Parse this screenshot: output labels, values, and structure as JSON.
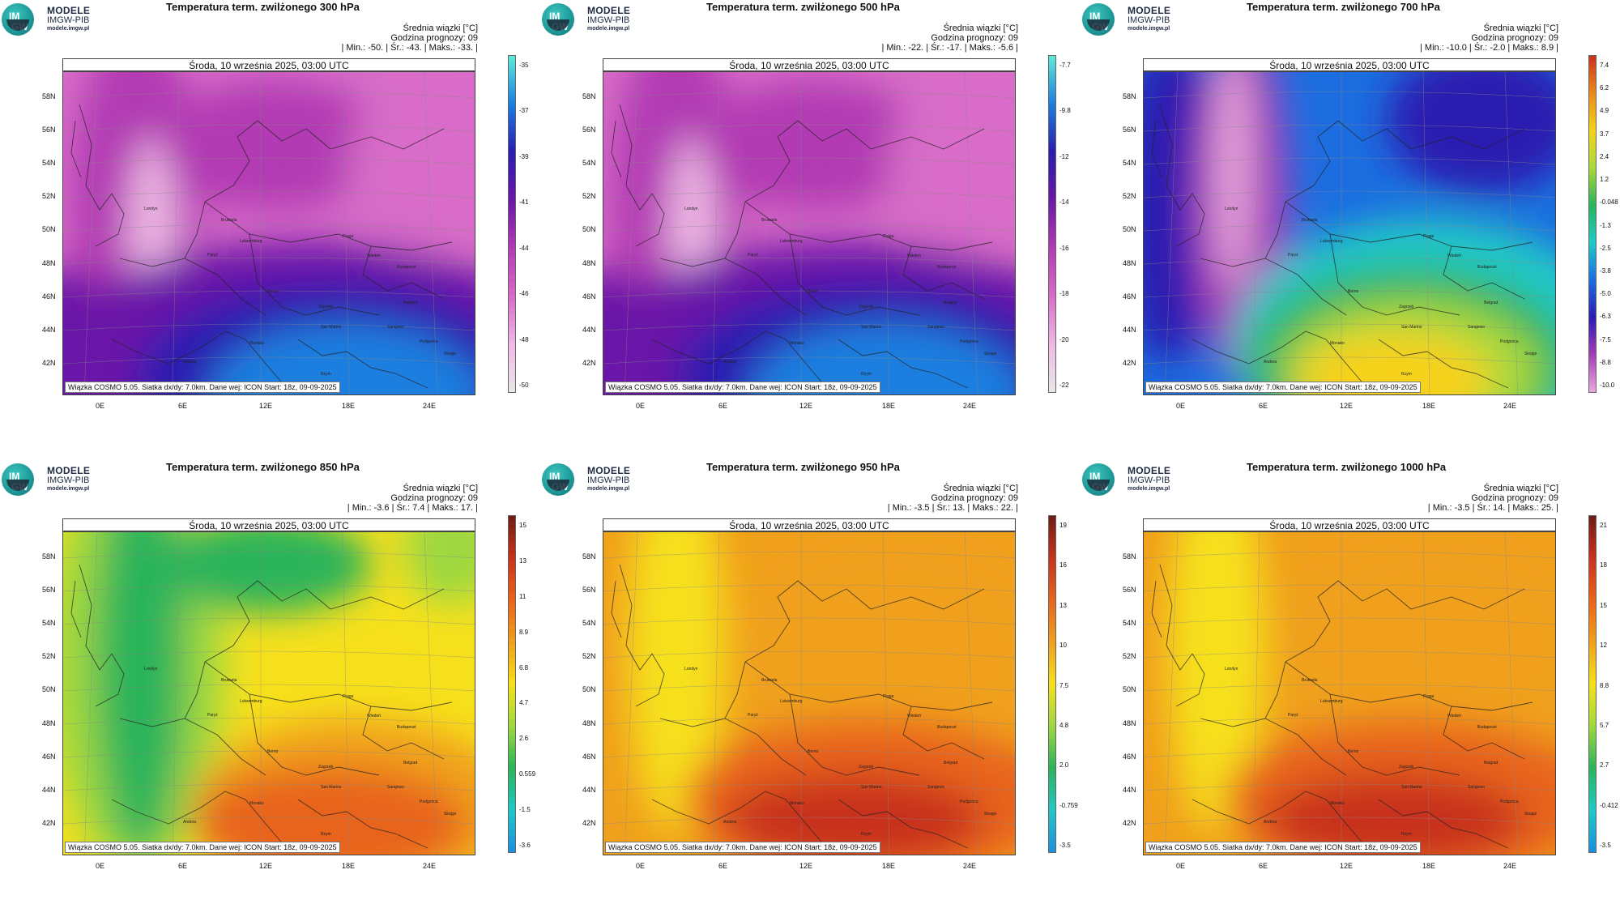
{
  "logo": {
    "line1": "MODELE",
    "line2": "IMGW-PIB",
    "line3": "modele.imgw.pl",
    "badge_top": "IM",
    "badge_bottom": "GW"
  },
  "common": {
    "legend_title": "Średnia wiązki [°C]",
    "forecast_hour": "Godzina prognozy: 09",
    "date": "Środa, 10 września 2025, 03:00 UTC",
    "footer": "Wiązka COSMO 5.05. Siatka dx/dy: 7.0km. Dane wej: ICON Start: 18z, 09-09-2025",
    "lat_labels": [
      "58N",
      "56N",
      "54N",
      "52N",
      "50N",
      "48N",
      "46N",
      "44N",
      "42N"
    ],
    "lon_labels": [
      "0E",
      "6E",
      "12E",
      "18E",
      "24E"
    ],
    "cities": [
      "Londyn",
      "Bruksela",
      "Paryż",
      "Luksemburg",
      "Praga",
      "Wiedeń",
      "Budapeszt",
      "Berno",
      "Zagrzeb",
      "Belgrad",
      "San Marino",
      "Sarajewo",
      "Podgorica",
      "Monako",
      "Andora",
      "Skopje",
      "Rzym"
    ]
  },
  "panels": [
    {
      "title": "Temperatura term. zwilżonego 300 hPa",
      "stats": "| Min.:   -50. | Śr.:   -43. | Maks.:   -33. |",
      "colorbar": [
        "-35",
        "-37",
        "-39",
        "-41",
        "-44",
        "-46",
        "-48",
        "-50"
      ],
      "scheme": "cold",
      "colors": [
        "#5eead8",
        "#1c7fe0",
        "#2a1cb0",
        "#6a18a8",
        "#b23ab4",
        "#d86cc8",
        "#eeb8e4",
        "#e8e8e8"
      ]
    },
    {
      "title": "Temperatura term. zwilżonego 500 hPa",
      "stats": "| Min.:   -22. | Śr.:   -17. | Maks.:   -5.6 |",
      "colorbar": [
        "-7.7",
        "-9.8",
        "-12",
        "-14",
        "-16",
        "-18",
        "-20",
        "-22"
      ],
      "scheme": "cold",
      "colors": [
        "#5eead8",
        "#1c7fe0",
        "#2a1cb0",
        "#6a18a8",
        "#b23ab4",
        "#d86cc8",
        "#eeb8e4",
        "#e8e8e8"
      ]
    },
    {
      "title": "Temperatura term. zwilżonego 700 hPa",
      "stats": "| Min.:   -10.0 | Śr.:   -2.0 | Maks.:   8.9 |",
      "colorbar": [
        "7.4",
        "6.2",
        "4.9",
        "3.7",
        "2.4",
        "1.2",
        "-0.048",
        "-1.3",
        "-2.5",
        "-3.8",
        "-5.0",
        "-6.3",
        "-7.5",
        "-8.8",
        "-10.0"
      ],
      "scheme": "mid",
      "colors": [
        "#c8321c",
        "#e88a1c",
        "#f6d21c",
        "#a8d83c",
        "#2ab45a",
        "#20c8c8",
        "#1c6ee0",
        "#2a1cb0",
        "#a83cb8",
        "#e8a8dc"
      ]
    },
    {
      "title": "Temperatura term. zwilżonego 850 hPa",
      "stats": "| Min.:   -3.6 | Śr.:   7.4 | Maks.:   17. |",
      "colorbar": [
        "15",
        "13",
        "11",
        "8.9",
        "6.8",
        "4.7",
        "2.6",
        "0.559",
        "-1.5",
        "-3.6"
      ],
      "scheme": "warm",
      "colors": [
        "#6e1c14",
        "#c8321c",
        "#e8641c",
        "#f0a01c",
        "#f6e01c",
        "#9ed840",
        "#2ab45a",
        "#20c8c8",
        "#1c8ee0"
      ]
    },
    {
      "title": "Temperatura term. zwilżonego 950 hPa",
      "stats": "| Min.:   -3.5 | Śr.:   13. | Maks.:   22. |",
      "colorbar": [
        "19",
        "16",
        "13",
        "10",
        "7.5",
        "4.8",
        "2.0",
        "-0.759",
        "-3.5"
      ],
      "scheme": "hot",
      "colors": [
        "#6e1c14",
        "#c8321c",
        "#e8641c",
        "#f0a01c",
        "#f6e01c",
        "#9ed840",
        "#2ab45a",
        "#20c8c8",
        "#1c8ee0"
      ]
    },
    {
      "title": "Temperatura term. zwilżonego 1000 hPa",
      "stats": "| Min.:   -3.5 | Śr.:   14. | Maks.:   25. |",
      "colorbar": [
        "21",
        "18",
        "15",
        "12",
        "8.8",
        "5.7",
        "2.7",
        "-0.412",
        "-3.5"
      ],
      "scheme": "hot",
      "colors": [
        "#6e1c14",
        "#c8321c",
        "#e8641c",
        "#f0a01c",
        "#f6e01c",
        "#9ed840",
        "#2ab45a",
        "#20c8c8",
        "#1c8ee0"
      ]
    }
  ]
}
